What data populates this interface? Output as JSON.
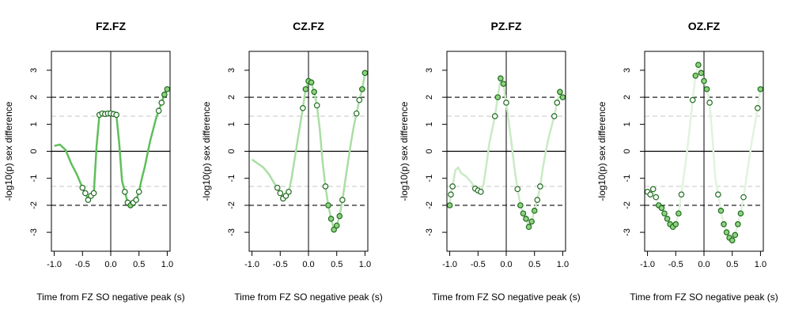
{
  "chart_data": [
    {
      "type": "line",
      "title": "FZ.FZ",
      "xlabel": "Time from FZ SO negative peak (s)",
      "ylabel": "-log10(p) sex difference",
      "xlim": [
        -1.05,
        1.05
      ],
      "ylim": [
        -3.7,
        3.7
      ],
      "x_ticks": [
        "-1.0",
        "-0.5",
        "0.0",
        "0.5",
        "1.0"
      ],
      "y_ticks": [
        "-3",
        "-2",
        "-1",
        "0",
        "1",
        "2",
        "3"
      ],
      "hlines": [
        {
          "y": 2,
          "style": "dashed",
          "color": "#222222"
        },
        {
          "y": -2,
          "style": "dashed",
          "color": "#222222"
        },
        {
          "y": 1.3,
          "style": "dashed",
          "color": "#cccccc"
        },
        {
          "y": -1.3,
          "style": "dashed",
          "color": "#cccccc"
        },
        {
          "y": 0,
          "style": "solid",
          "color": "#000000"
        }
      ],
      "vline_x": 0,
      "line_color": "#5fbf5a",
      "point_fill": "#8fd27f",
      "point_stroke": "#1f6b1f",
      "points_threshold": 1.3,
      "x": [
        -1.0,
        -0.9,
        -0.8,
        -0.7,
        -0.6,
        -0.5,
        -0.45,
        -0.4,
        -0.35,
        -0.3,
        -0.25,
        -0.2,
        -0.15,
        -0.1,
        -0.05,
        0.0,
        0.05,
        0.1,
        0.15,
        0.2,
        0.25,
        0.3,
        0.35,
        0.4,
        0.45,
        0.5,
        0.55,
        0.6,
        0.65,
        0.7,
        0.75,
        0.8,
        0.85,
        0.9,
        0.95,
        1.0
      ],
      "y": [
        0.2,
        0.25,
        0.05,
        -0.45,
        -0.85,
        -1.35,
        -1.55,
        -1.8,
        -1.65,
        -1.55,
        0.2,
        1.35,
        1.4,
        1.38,
        1.4,
        1.4,
        1.38,
        1.35,
        0.3,
        -1.1,
        -1.5,
        -1.9,
        -2.0,
        -1.9,
        -1.8,
        -1.5,
        -1.0,
        -0.6,
        -0.1,
        0.4,
        0.8,
        1.2,
        1.5,
        1.8,
        2.1,
        2.3
      ]
    },
    {
      "type": "line",
      "title": "CZ.FZ",
      "xlabel": "Time from FZ SO negative peak (s)",
      "ylabel": "-log10(p) sex difference",
      "xlim": [
        -1.05,
        1.05
      ],
      "ylim": [
        -3.7,
        3.7
      ],
      "x_ticks": [
        "-1.0",
        "-0.5",
        "0.0",
        "0.5",
        "1.0"
      ],
      "y_ticks": [
        "-3",
        "-2",
        "-1",
        "0",
        "1",
        "2",
        "3"
      ],
      "hlines": [
        {
          "y": 2,
          "style": "dashed",
          "color": "#222222"
        },
        {
          "y": -2,
          "style": "dashed",
          "color": "#222222"
        },
        {
          "y": 1.3,
          "style": "dashed",
          "color": "#cccccc"
        },
        {
          "y": -1.3,
          "style": "dashed",
          "color": "#cccccc"
        },
        {
          "y": 0,
          "style": "solid",
          "color": "#000000"
        }
      ],
      "vline_x": 0,
      "line_color": "#a9dea4",
      "point_fill": "#8fd27f",
      "point_stroke": "#1f6b1f",
      "points_threshold": 1.3,
      "x": [
        -1.0,
        -0.9,
        -0.8,
        -0.7,
        -0.6,
        -0.55,
        -0.5,
        -0.45,
        -0.4,
        -0.35,
        -0.3,
        -0.2,
        -0.1,
        -0.05,
        0.0,
        0.05,
        0.1,
        0.15,
        0.2,
        0.25,
        0.3,
        0.35,
        0.4,
        0.45,
        0.5,
        0.55,
        0.6,
        0.65,
        0.7,
        0.75,
        0.8,
        0.85,
        0.9,
        0.95,
        1.0
      ],
      "y": [
        -0.3,
        -0.45,
        -0.6,
        -0.85,
        -1.2,
        -1.35,
        -1.55,
        -1.75,
        -1.65,
        -1.5,
        -1.0,
        0.3,
        1.6,
        2.3,
        2.6,
        2.55,
        2.2,
        1.7,
        0.8,
        -0.4,
        -1.3,
        -2.0,
        -2.5,
        -2.9,
        -2.75,
        -2.4,
        -1.8,
        -1.1,
        -0.4,
        0.3,
        0.9,
        1.4,
        1.9,
        2.3,
        2.9
      ]
    },
    {
      "type": "line",
      "title": "PZ.FZ",
      "xlabel": "Time from FZ SO negative peak (s)",
      "ylabel": "-log10(p) sex difference",
      "xlim": [
        -1.05,
        1.05
      ],
      "ylim": [
        -3.7,
        3.7
      ],
      "x_ticks": [
        "-1.0",
        "-0.5",
        "0.0",
        "0.5",
        "1.0"
      ],
      "y_ticks": [
        "-3",
        "-2",
        "-1",
        "0",
        "1",
        "2",
        "3"
      ],
      "hlines": [
        {
          "y": 2,
          "style": "dashed",
          "color": "#222222"
        },
        {
          "y": -2,
          "style": "dashed",
          "color": "#222222"
        },
        {
          "y": 1.3,
          "style": "dashed",
          "color": "#cccccc"
        },
        {
          "y": -1.3,
          "style": "dashed",
          "color": "#cccccc"
        },
        {
          "y": 0,
          "style": "solid",
          "color": "#000000"
        }
      ],
      "vline_x": 0,
      "line_color": "#c9eac5",
      "point_fill": "#8fd27f",
      "point_stroke": "#1f6b1f",
      "points_threshold": 1.3,
      "x": [
        -1.0,
        -0.98,
        -0.95,
        -0.9,
        -0.85,
        -0.8,
        -0.7,
        -0.6,
        -0.55,
        -0.5,
        -0.45,
        -0.4,
        -0.35,
        -0.3,
        -0.2,
        -0.15,
        -0.1,
        -0.05,
        0.0,
        0.05,
        0.1,
        0.15,
        0.2,
        0.25,
        0.3,
        0.35,
        0.4,
        0.45,
        0.5,
        0.55,
        0.6,
        0.65,
        0.7,
        0.75,
        0.8,
        0.85,
        0.9,
        0.95,
        1.0
      ],
      "y": [
        -2.0,
        -1.6,
        -1.3,
        -0.7,
        -0.6,
        -0.8,
        -0.95,
        -1.2,
        -1.38,
        -1.45,
        -1.5,
        -1.2,
        -0.5,
        0.3,
        1.3,
        2.0,
        2.7,
        2.5,
        1.8,
        1.0,
        0.2,
        -0.7,
        -1.4,
        -2.0,
        -2.3,
        -2.5,
        -2.8,
        -2.6,
        -2.2,
        -1.8,
        -1.3,
        -0.6,
        0.0,
        0.5,
        0.9,
        1.3,
        1.8,
        2.2,
        2.0
      ]
    },
    {
      "type": "line",
      "title": "OZ.FZ",
      "xlabel": "Time from FZ SO negative peak (s)",
      "ylabel": "-log10(p) sex difference",
      "xlim": [
        -1.05,
        1.05
      ],
      "ylim": [
        -3.7,
        3.7
      ],
      "x_ticks": [
        "-1.0",
        "-0.5",
        "0.0",
        "0.5",
        "1.0"
      ],
      "y_ticks": [
        "-3",
        "-2",
        "-1",
        "0",
        "1",
        "2",
        "3"
      ],
      "hlines": [
        {
          "y": 2,
          "style": "dashed",
          "color": "#222222"
        },
        {
          "y": -2,
          "style": "dashed",
          "color": "#222222"
        },
        {
          "y": 1.3,
          "style": "dashed",
          "color": "#cccccc"
        },
        {
          "y": -1.3,
          "style": "dashed",
          "color": "#cccccc"
        },
        {
          "y": 0,
          "style": "solid",
          "color": "#000000"
        }
      ],
      "vline_x": 0,
      "line_color": "#e1f3de",
      "point_fill": "#8fd27f",
      "point_stroke": "#1f6b1f",
      "points_threshold": 1.3,
      "x": [
        -1.0,
        -0.95,
        -0.9,
        -0.85,
        -0.8,
        -0.75,
        -0.7,
        -0.65,
        -0.6,
        -0.55,
        -0.5,
        -0.45,
        -0.4,
        -0.35,
        -0.3,
        -0.25,
        -0.2,
        -0.15,
        -0.1,
        -0.05,
        0.0,
        0.05,
        0.1,
        0.15,
        0.2,
        0.25,
        0.3,
        0.35,
        0.4,
        0.45,
        0.5,
        0.55,
        0.6,
        0.65,
        0.7,
        0.75,
        0.8,
        0.85,
        0.9,
        0.95,
        1.0
      ],
      "y": [
        -1.5,
        -1.6,
        -1.4,
        -1.7,
        -2.0,
        -2.1,
        -2.3,
        -2.5,
        -2.7,
        -2.8,
        -2.7,
        -2.3,
        -1.6,
        -0.8,
        0.0,
        0.9,
        1.9,
        2.8,
        3.2,
        2.9,
        2.6,
        2.3,
        1.8,
        0.5,
        -1.0,
        -1.6,
        -2.2,
        -2.7,
        -3.0,
        -3.2,
        -3.3,
        -3.1,
        -2.7,
        -2.3,
        -1.7,
        -1.0,
        -0.3,
        0.4,
        1.0,
        1.6,
        2.3
      ]
    }
  ]
}
